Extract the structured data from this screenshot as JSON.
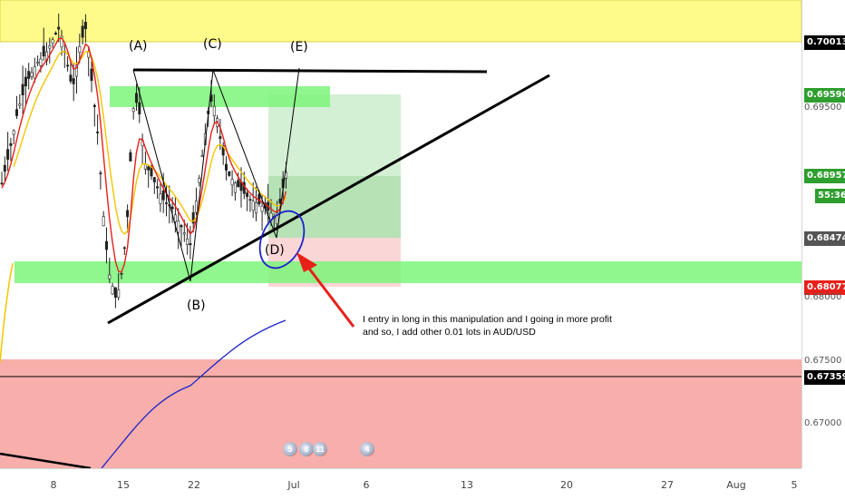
{
  "chart_data": {
    "type": "candlestick",
    "symbol": "AUD/USD",
    "wave_labels": [
      "(A)",
      "(B)",
      "(C)",
      "(D)",
      "(E)"
    ],
    "price_axis": {
      "ticks": [
        "0.69500",
        "0.68000",
        "0.67500",
        "0.67000"
      ],
      "tagged": [
        {
          "value": "0.70013",
          "bg": "#000000"
        },
        {
          "value": "0.69590",
          "bg": "#2e9e2e"
        },
        {
          "value": "0.68957",
          "bg": "#2e9e2e"
        },
        {
          "value": "55:36",
          "bg": "#2e9e2e"
        },
        {
          "value": "0.68474",
          "bg": "#555555"
        },
        {
          "value": "0.68077",
          "bg": "#e8201a"
        },
        {
          "value": "0.67359",
          "bg": "#000000"
        }
      ]
    },
    "time_axis": [
      "8",
      "15",
      "22",
      "Jul",
      "6",
      "13",
      "20",
      "27",
      "Aug",
      "5"
    ],
    "annotation": {
      "line1": "I entry in long in this manipulation and I going in more profit",
      "line2": "and so, I add other 0.01 lots in AUD/USD"
    },
    "event_badges": [
      "5",
      "8",
      "11",
      "4"
    ],
    "colors": {
      "up": "#26a69a",
      "down": "#000000",
      "candle": "#222222",
      "ema_fast": "#e8201a",
      "ema_slow": "#f5c400",
      "ma_long": "#1a22cc",
      "resistance_zone": "#fffb8a",
      "support_zone": "#7df57a",
      "demand_zone": "#f8aaa6",
      "target_box": "#c9ecc9",
      "stop_box": "#fbd2d2"
    }
  }
}
